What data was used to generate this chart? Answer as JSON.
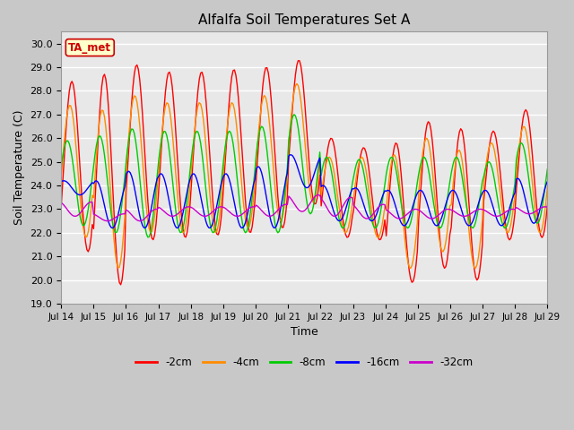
{
  "title": "Alfalfa Soil Temperatures Set A",
  "xlabel": "Time",
  "ylabel": "Soil Temperature (C)",
  "ylim": [
    19.0,
    30.5
  ],
  "yticks": [
    19.0,
    20.0,
    21.0,
    22.0,
    23.0,
    24.0,
    25.0,
    26.0,
    27.0,
    28.0,
    29.0,
    30.0
  ],
  "xtick_labels": [
    "Jul 14",
    "Jul 15",
    "Jul 16",
    "Jul 17",
    "Jul 18",
    "Jul 19",
    "Jul 20",
    "Jul 21",
    "Jul 22",
    "Jul 23",
    "Jul 24",
    "Jul 25",
    "Jul 26",
    "Jul 27",
    "Jul 28",
    "Jul 29"
  ],
  "legend_labels": [
    "-2cm",
    "-4cm",
    "-8cm",
    "-16cm",
    "-32cm"
  ],
  "annotation_text": "TA_met",
  "annotation_bg": "#ffffcc",
  "annotation_border": "#cc0000",
  "fig_bg_color": "#c8c8c8",
  "plot_bg_color": "#e8e8e8",
  "grid_color": "#ffffff",
  "colors": {
    "2cm": "#ff0000",
    "4cm": "#ff8c00",
    "8cm": "#00cc00",
    "16cm": "#0000ff",
    "32cm": "#cc00cc"
  },
  "peaks_2cm": [
    28.4,
    28.7,
    29.1,
    28.8,
    28.8,
    28.9,
    29.0,
    29.3,
    26.0,
    25.6,
    25.8,
    26.7,
    26.4,
    26.3,
    27.2,
    26.0
  ],
  "mins_2cm": [
    21.2,
    19.8,
    21.7,
    21.8,
    21.9,
    22.0,
    22.2,
    23.2,
    21.8,
    21.7,
    19.9,
    20.5,
    20.0,
    21.7,
    21.8,
    22.5
  ],
  "peaks_4cm": [
    27.4,
    27.2,
    27.8,
    27.5,
    27.5,
    27.5,
    27.8,
    28.3,
    25.2,
    25.2,
    25.3,
    26.0,
    25.5,
    25.8,
    26.5,
    25.5
  ],
  "mins_4cm": [
    21.8,
    20.5,
    22.0,
    22.0,
    22.0,
    22.2,
    22.5,
    23.3,
    22.0,
    21.8,
    20.5,
    21.2,
    20.5,
    22.0,
    22.0,
    22.8
  ],
  "peaks_8cm": [
    25.9,
    26.1,
    26.4,
    26.3,
    26.3,
    26.3,
    26.5,
    27.0,
    25.2,
    25.1,
    25.2,
    25.2,
    25.2,
    25.0,
    25.8,
    25.0
  ],
  "mins_8cm": [
    22.3,
    22.0,
    21.8,
    22.0,
    22.0,
    22.0,
    22.0,
    22.8,
    22.2,
    22.2,
    22.2,
    22.2,
    22.2,
    22.2,
    22.4,
    22.5
  ],
  "peaks_16cm": [
    24.2,
    24.2,
    24.6,
    24.5,
    24.5,
    24.5,
    24.8,
    25.3,
    24.0,
    23.9,
    23.8,
    23.8,
    23.8,
    23.8,
    24.3,
    24.3
  ],
  "mins_16cm": [
    23.6,
    22.2,
    22.2,
    22.2,
    22.2,
    22.2,
    22.2,
    23.9,
    22.5,
    22.5,
    22.3,
    22.3,
    22.3,
    22.3,
    22.4,
    22.5
  ],
  "peaks_32cm": [
    23.3,
    22.8,
    23.0,
    23.1,
    23.1,
    23.1,
    23.2,
    23.6,
    23.5,
    23.2,
    23.0,
    23.0,
    23.0,
    23.0,
    23.1,
    23.1
  ],
  "mins_32cm": [
    22.7,
    22.5,
    22.5,
    22.7,
    22.7,
    22.7,
    22.7,
    22.9,
    22.7,
    22.6,
    22.6,
    22.6,
    22.7,
    22.7,
    22.8,
    22.8
  ],
  "phase_offsets": [
    0.0,
    0.06,
    0.14,
    0.25,
    0.4
  ]
}
